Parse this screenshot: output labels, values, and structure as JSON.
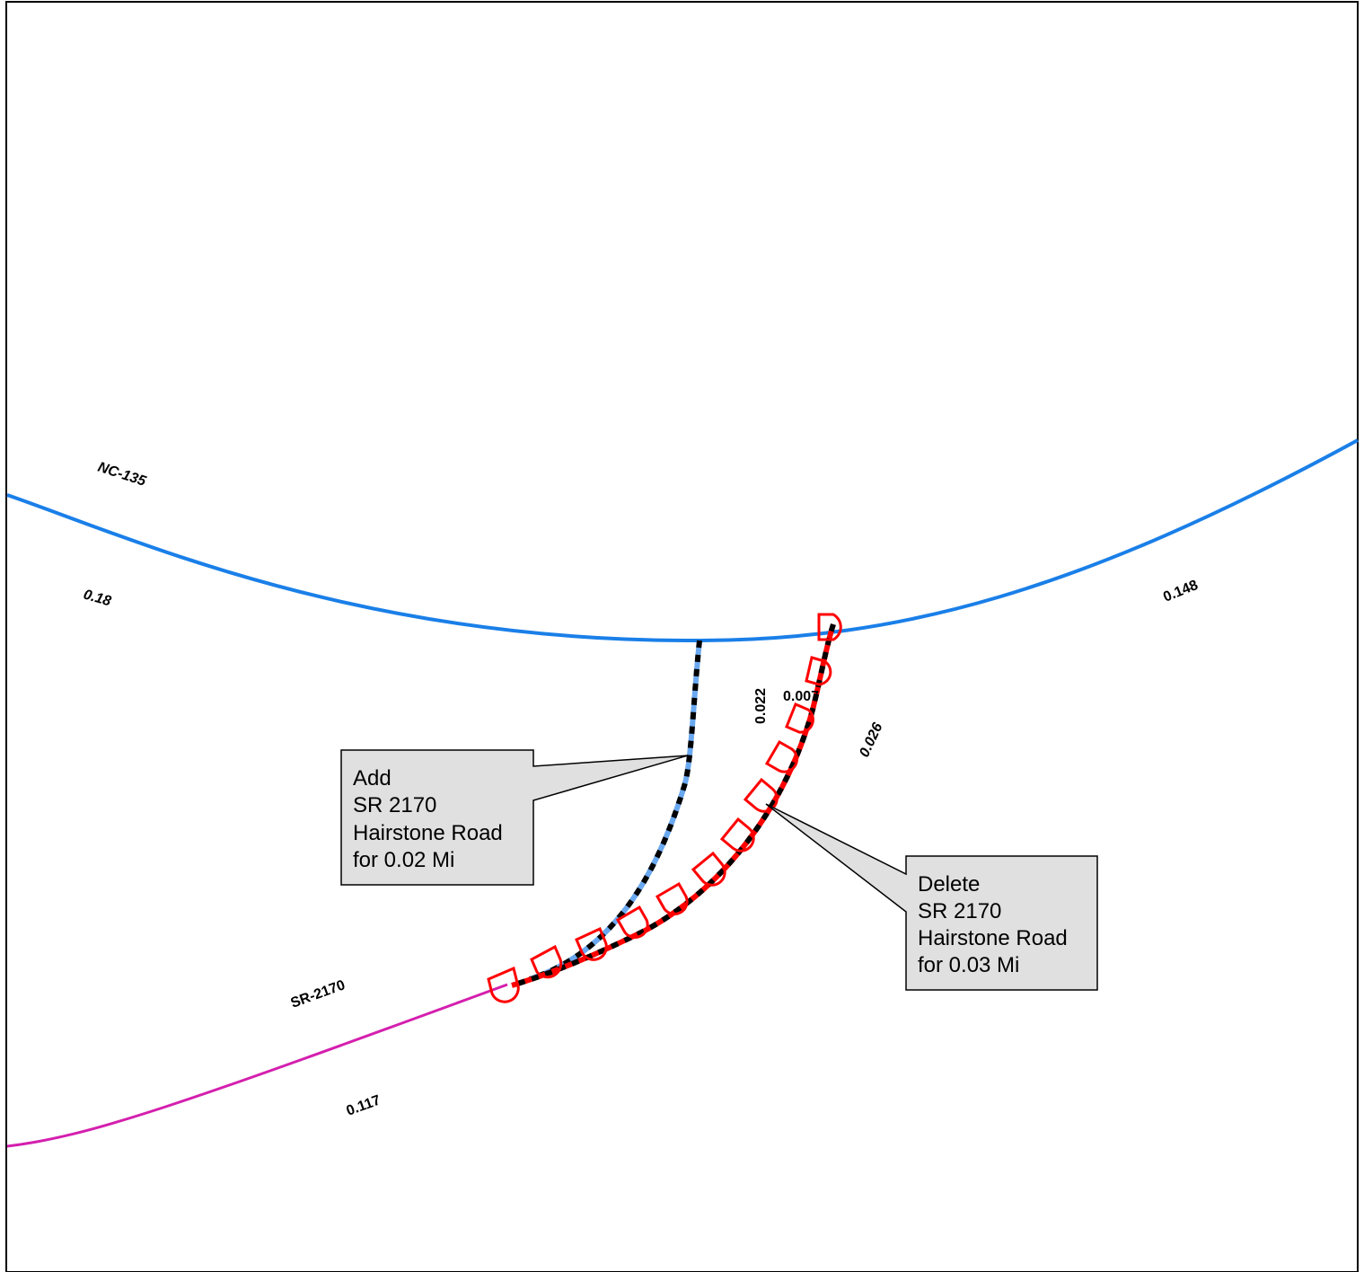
{
  "roads": {
    "nc135": {
      "name": "NC-135",
      "color": "#1a7fe8"
    },
    "sr2170": {
      "name": "SR-2170",
      "color": "#d41fae"
    },
    "added_segment_color": "#6aa8f0",
    "deleted_segment_color": "#ff0000"
  },
  "segment_labels": {
    "nc135_west": "0.18",
    "nc135_east": "0.148",
    "sr2170_main": "0.117",
    "added": "0.022",
    "deleted_top": "0.007",
    "deleted_main": "0.026"
  },
  "callouts": {
    "add": {
      "line1": "Add",
      "line2": "SR 2170",
      "line3": "Hairstone Road",
      "line4": "for 0.02 Mi"
    },
    "delete": {
      "line1": "Delete",
      "line2": "SR 2170",
      "line3": "Hairstone Road",
      "line4": "for 0.03 Mi"
    }
  },
  "icons": {
    "deletion_marker": "red-d-shaped-marker-icon"
  }
}
